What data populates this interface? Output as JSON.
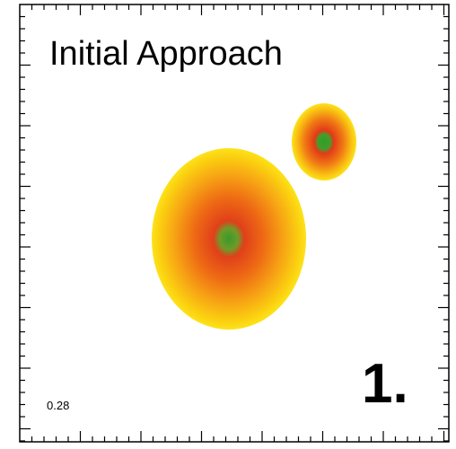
{
  "panel": {
    "title": "Initial Approach",
    "time_label": "0.28",
    "step_label": "1."
  }
}
